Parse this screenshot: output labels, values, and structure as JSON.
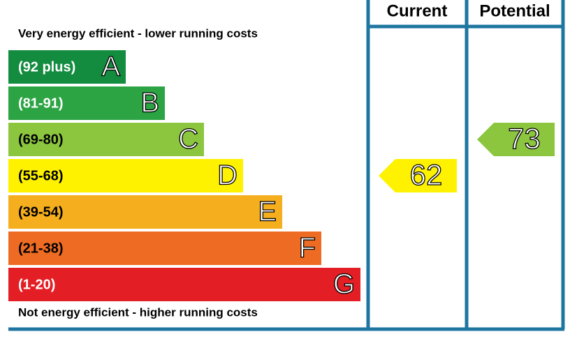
{
  "header": {
    "current": "Current",
    "potential": "Potential"
  },
  "top_note": "Very energy efficient - lower running costs",
  "bottom_note": "Not energy efficient - higher running costs",
  "bands": [
    {
      "range": "(92 plus)",
      "letter": "A",
      "color": "#138c3f",
      "text_color": "#ffffff"
    },
    {
      "range": "(81-91)",
      "letter": "B",
      "color": "#2ca443",
      "text_color": "#ffffff"
    },
    {
      "range": "(69-80)",
      "letter": "C",
      "color": "#8cc63f",
      "text_color": "#000000"
    },
    {
      "range": "(55-68)",
      "letter": "D",
      "color": "#fff200",
      "text_color": "#000000"
    },
    {
      "range": "(39-54)",
      "letter": "E",
      "color": "#f5ae1d",
      "text_color": "#000000"
    },
    {
      "range": "(21-38)",
      "letter": "F",
      "color": "#ee6b24",
      "text_color": "#000000"
    },
    {
      "range": "(1-20)",
      "letter": "G",
      "color": "#e31e24",
      "text_color": "#ffffff"
    }
  ],
  "ratings": {
    "current": 62,
    "potential": 73
  },
  "frame_color": "#1e76a0"
}
